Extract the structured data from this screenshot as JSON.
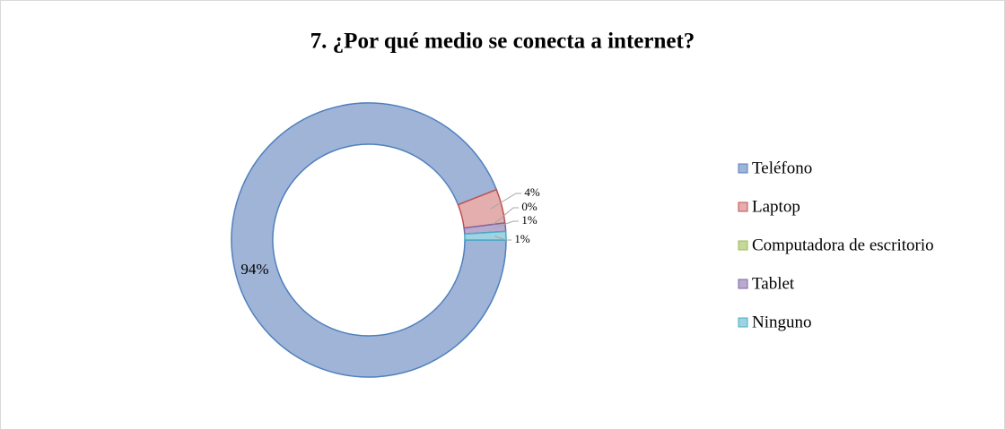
{
  "chart_data": {
    "type": "donut",
    "title": "7. ¿Por qué medio se conecta a internet?",
    "categories": [
      "Teléfono",
      "Laptop",
      "Computadora de escritorio",
      "Tablet",
      "Ninguno"
    ],
    "values": [
      94,
      4,
      0,
      1,
      1
    ],
    "value_labels": [
      "94%",
      "4%",
      "0%",
      "1%",
      "1%"
    ],
    "colors": [
      "#a0b4d8",
      "#e4aeae",
      "#c4d89a",
      "#b9abcf",
      "#9dd3e2"
    ],
    "stroke_colors": [
      "#4f81bd",
      "#c0504d",
      "#9bbb59",
      "#8064a2",
      "#4bacc6"
    ],
    "legend": "right"
  }
}
